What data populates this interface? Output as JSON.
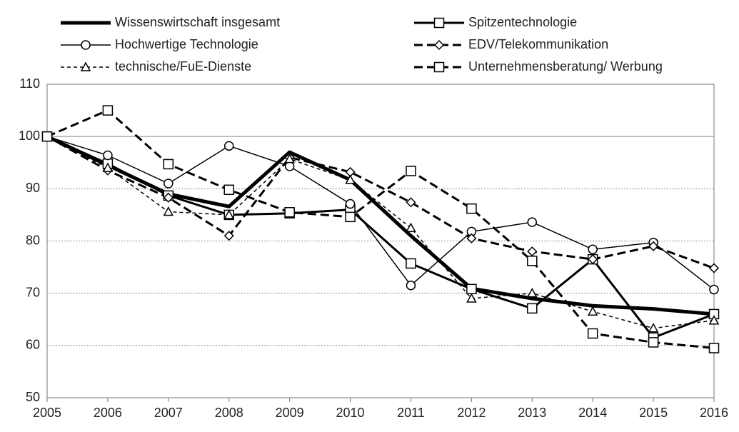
{
  "chart_data": {
    "type": "line",
    "x": [
      2005,
      2006,
      2007,
      2008,
      2009,
      2010,
      2011,
      2012,
      2013,
      2014,
      2015,
      2016
    ],
    "xlim": [
      2005,
      2016
    ],
    "xticks": [
      2005,
      2006,
      2007,
      2008,
      2009,
      2010,
      2011,
      2012,
      2013,
      2014,
      2015,
      2016
    ],
    "ylim": [
      50,
      110
    ],
    "yticks": [
      50,
      60,
      70,
      80,
      90,
      100,
      110
    ],
    "grid": true,
    "reference_line": 100,
    "legend": "top",
    "series": [
      {
        "name": "Wissenswirtschaft insgesamt",
        "color": "#000000",
        "width": 5,
        "dash": "solid",
        "marker": "none",
        "values": [
          100,
          94.5,
          89,
          86.6,
          97,
          91.7,
          81,
          70.9,
          69,
          67.6,
          67,
          66
        ]
      },
      {
        "name": "Spitzentechnologie",
        "color": "#000000",
        "width": 3,
        "dash": "solid",
        "marker": "square",
        "values": [
          100,
          94.8,
          88.7,
          85,
          85.3,
          86,
          75.7,
          70.8,
          67.1,
          76.5,
          61.5,
          66
        ]
      },
      {
        "name": "Hochwertige Technologie",
        "color": "#000000",
        "width": 1.5,
        "dash": "solid",
        "marker": "circle",
        "values": [
          100,
          96.4,
          91,
          98.2,
          94.3,
          87.1,
          71.5,
          81.8,
          83.6,
          78.4,
          79.7,
          70.7
        ]
      },
      {
        "name": "EDV/Telekommunikation",
        "color": "#000000",
        "width": 3,
        "dash": "dashed",
        "marker": "diamond",
        "values": [
          100,
          93.5,
          88.3,
          81,
          96,
          93.2,
          87.4,
          80.5,
          78,
          76.5,
          79,
          74.8
        ]
      },
      {
        "name": "technische/FuE-Dienste",
        "color": "#000000",
        "width": 1.5,
        "dash": "dotted",
        "marker": "triangle",
        "values": [
          100,
          94,
          85.6,
          85,
          95.7,
          91.7,
          82.5,
          69,
          70,
          66.5,
          63.3,
          64.8
        ]
      },
      {
        "name": "Unternehmensberatung/ Werbung",
        "color": "#000000",
        "width": 3,
        "dash": "dashed",
        "marker": "square",
        "values": [
          100,
          105,
          94.7,
          89.8,
          85.5,
          84.6,
          93.4,
          86.2,
          76.2,
          62.3,
          60.6,
          59.5
        ]
      }
    ]
  }
}
